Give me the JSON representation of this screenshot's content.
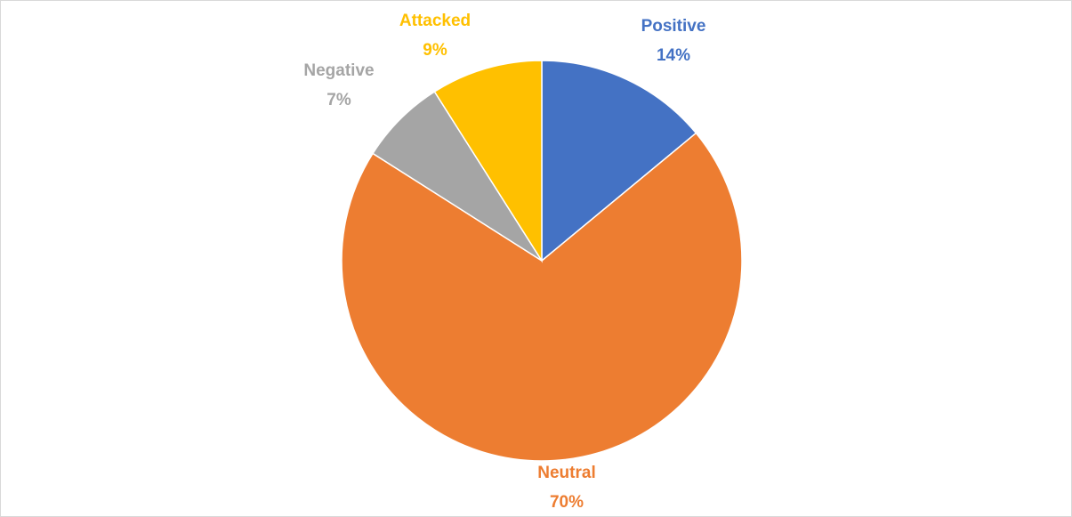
{
  "chart_data": {
    "type": "pie",
    "title": "",
    "categories": [
      "Positive",
      "Neutral",
      "Negative",
      "Attacked"
    ],
    "values": [
      14,
      70,
      7,
      9
    ],
    "slices": [
      {
        "category": "Positive",
        "value": 14,
        "label": "Positive",
        "percent_label": "14%",
        "color": "#4472C4"
      },
      {
        "category": "Neutral",
        "value": 70,
        "label": "Neutral",
        "percent_label": "70%",
        "color": "#ED7D31"
      },
      {
        "category": "Negative",
        "value": 7,
        "label": "Negative",
        "percent_label": "7%",
        "color": "#A5A5A5"
      },
      {
        "category": "Attacked",
        "value": 9,
        "label": "Attacked",
        "percent_label": "9%",
        "color": "#FFC000"
      }
    ],
    "start": "12 o'clock",
    "direction": "clockwise",
    "legend": "none",
    "data_labels": "outside, colored by slice"
  }
}
